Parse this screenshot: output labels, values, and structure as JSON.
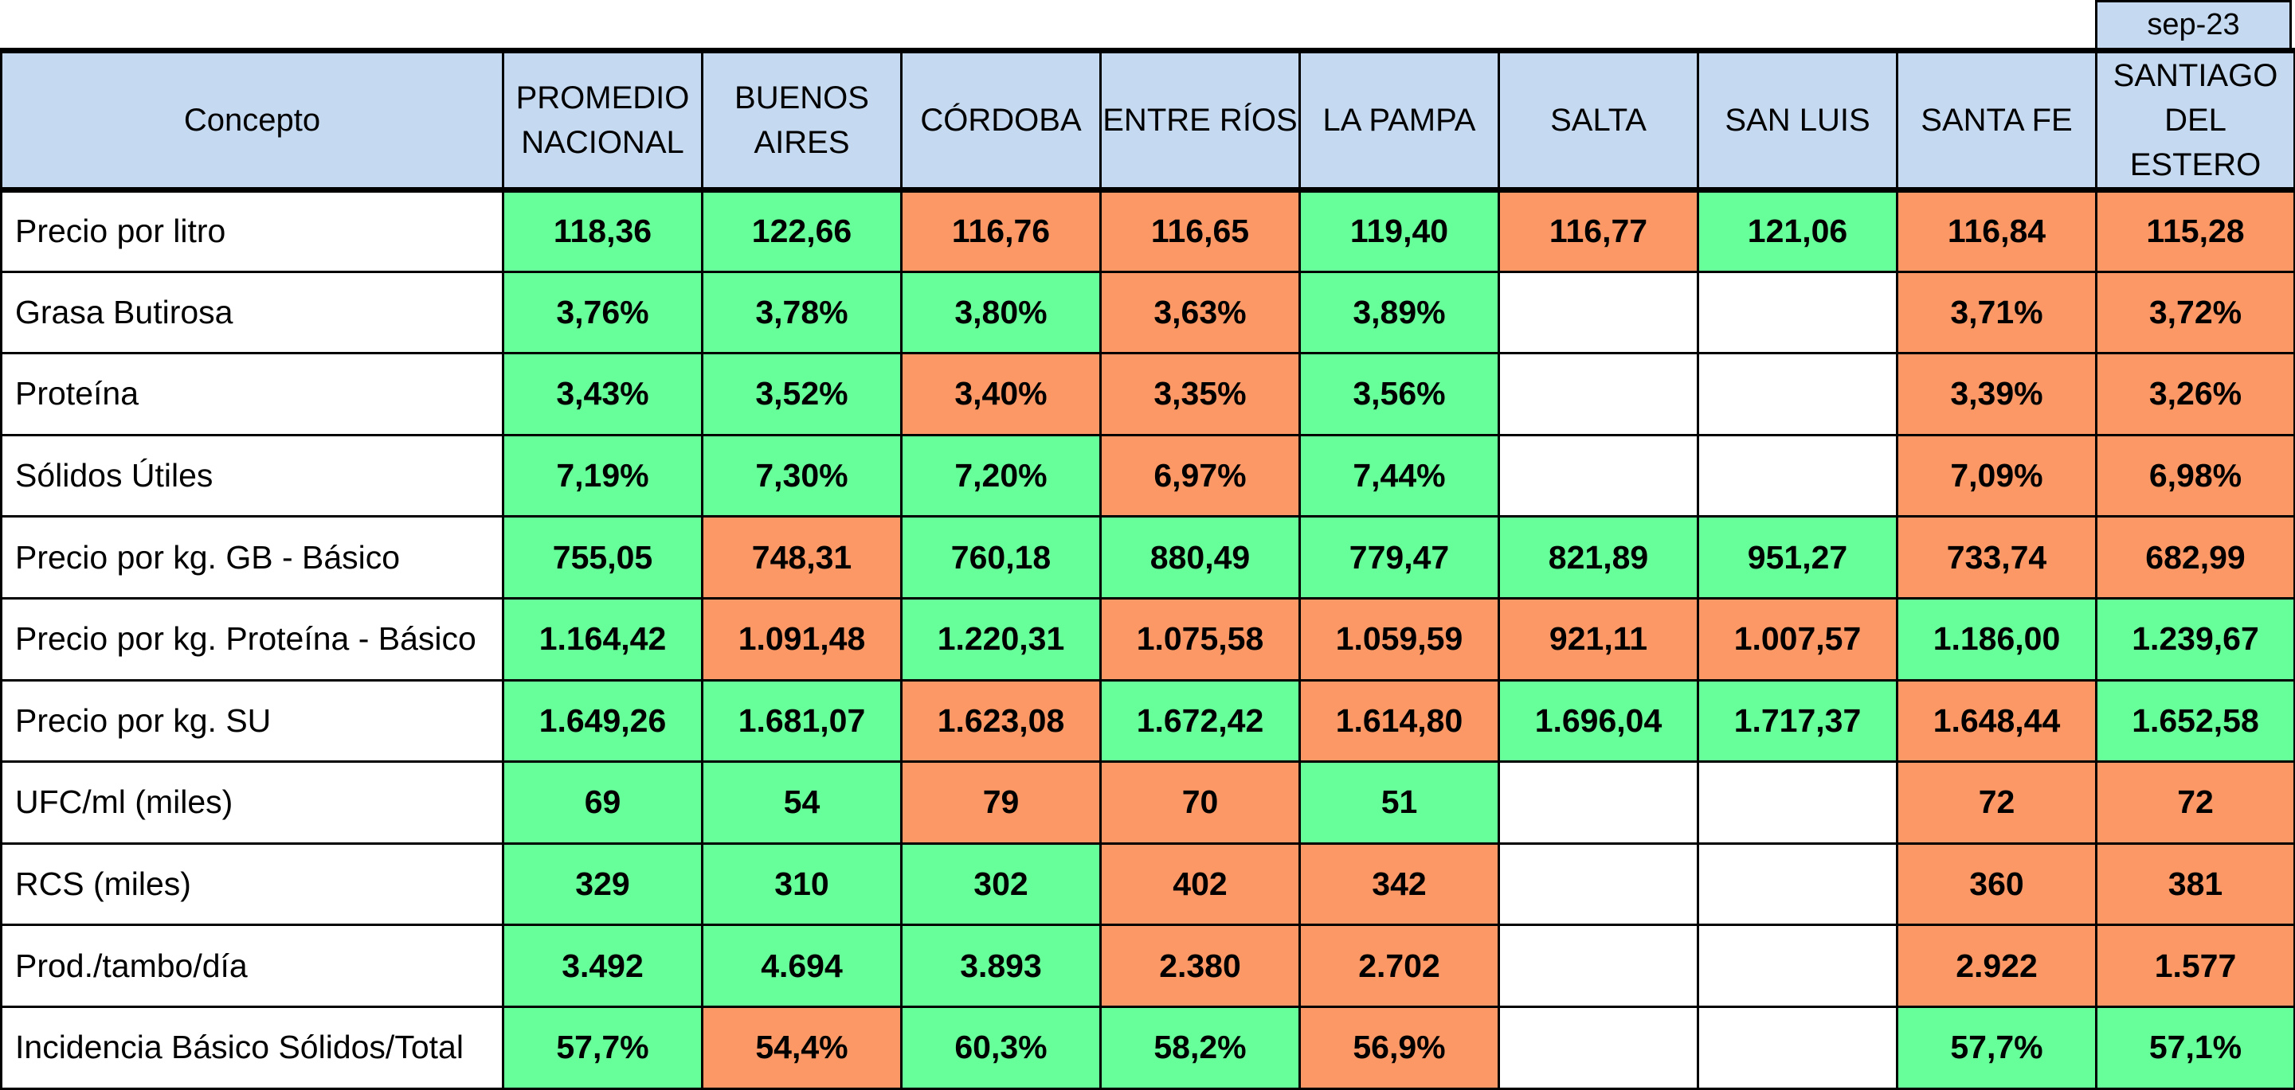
{
  "period": "sep-23",
  "header": {
    "concept": "Concepto",
    "regions": [
      "PROMEDIO NACIONAL",
      "BUENOS AIRES",
      "CÓRDOBA",
      "ENTRE RÍOS",
      "LA PAMPA",
      "SALTA",
      "SAN LUIS",
      "SANTA FE",
      "SANTIAGO DEL ESTERO"
    ]
  },
  "colors": {
    "green": "#66ff99",
    "orange": "#fc9865",
    "header": "#c5d9f1"
  },
  "rows": [
    {
      "label": "Precio por litro",
      "values": [
        "118,36",
        "122,66",
        "116,76",
        "116,65",
        "119,40",
        "116,77",
        "121,06",
        "116,84",
        "115,28"
      ],
      "status": [
        "green",
        "green",
        "orange",
        "orange",
        "green",
        "orange",
        "green",
        "orange",
        "orange"
      ]
    },
    {
      "label": "Grasa Butirosa",
      "values": [
        "3,76%",
        "3,78%",
        "3,80%",
        "3,63%",
        "3,89%",
        "",
        "",
        "3,71%",
        "3,72%"
      ],
      "status": [
        "green",
        "green",
        "green",
        "orange",
        "green",
        "blank",
        "blank",
        "orange",
        "orange"
      ]
    },
    {
      "label": "Proteína",
      "values": [
        "3,43%",
        "3,52%",
        "3,40%",
        "3,35%",
        "3,56%",
        "",
        "",
        "3,39%",
        "3,26%"
      ],
      "status": [
        "green",
        "green",
        "orange",
        "orange",
        "green",
        "blank",
        "blank",
        "orange",
        "orange"
      ]
    },
    {
      "label": "Sólidos Útiles",
      "values": [
        "7,19%",
        "7,30%",
        "7,20%",
        "6,97%",
        "7,44%",
        "",
        "",
        "7,09%",
        "6,98%"
      ],
      "status": [
        "green",
        "green",
        "green",
        "orange",
        "green",
        "blank",
        "blank",
        "orange",
        "orange"
      ]
    },
    {
      "label": "Precio por kg. GB - Básico",
      "values": [
        "755,05",
        "748,31",
        "760,18",
        "880,49",
        "779,47",
        "821,89",
        "951,27",
        "733,74",
        "682,99"
      ],
      "status": [
        "green",
        "orange",
        "green",
        "green",
        "green",
        "green",
        "green",
        "orange",
        "orange"
      ]
    },
    {
      "label": "Precio por kg. Proteína - Básico",
      "values": [
        "1.164,42",
        "1.091,48",
        "1.220,31",
        "1.075,58",
        "1.059,59",
        "921,11",
        "1.007,57",
        "1.186,00",
        "1.239,67"
      ],
      "status": [
        "green",
        "orange",
        "green",
        "orange",
        "orange",
        "orange",
        "orange",
        "green",
        "green"
      ]
    },
    {
      "label": "Precio por kg. SU",
      "values": [
        "1.649,26",
        "1.681,07",
        "1.623,08",
        "1.672,42",
        "1.614,80",
        "1.696,04",
        "1.717,37",
        "1.648,44",
        "1.652,58"
      ],
      "status": [
        "green",
        "green",
        "orange",
        "green",
        "orange",
        "green",
        "green",
        "orange",
        "green"
      ]
    },
    {
      "label": "UFC/ml (miles)",
      "values": [
        "69",
        "54",
        "79",
        "70",
        "51",
        "",
        "",
        "72",
        "72"
      ],
      "status": [
        "green",
        "green",
        "orange",
        "orange",
        "green",
        "blank",
        "blank",
        "orange",
        "orange"
      ]
    },
    {
      "label": "RCS (miles)",
      "values": [
        "329",
        "310",
        "302",
        "402",
        "342",
        "",
        "",
        "360",
        "381"
      ],
      "status": [
        "green",
        "green",
        "green",
        "orange",
        "orange",
        "blank",
        "blank",
        "orange",
        "orange"
      ]
    },
    {
      "label": "Prod./tambo/día",
      "values": [
        "3.492",
        "4.694",
        "3.893",
        "2.380",
        "2.702",
        "",
        "",
        "2.922",
        "1.577"
      ],
      "status": [
        "green",
        "green",
        "green",
        "orange",
        "orange",
        "blank",
        "blank",
        "orange",
        "orange"
      ]
    },
    {
      "label": "Incidencia Básico Sólidos/Total",
      "values": [
        "57,7%",
        "54,4%",
        "60,3%",
        "58,2%",
        "56,9%",
        "",
        "",
        "57,7%",
        "57,1%"
      ],
      "status": [
        "green",
        "orange",
        "green",
        "green",
        "orange",
        "blank",
        "blank",
        "green",
        "green"
      ]
    }
  ]
}
